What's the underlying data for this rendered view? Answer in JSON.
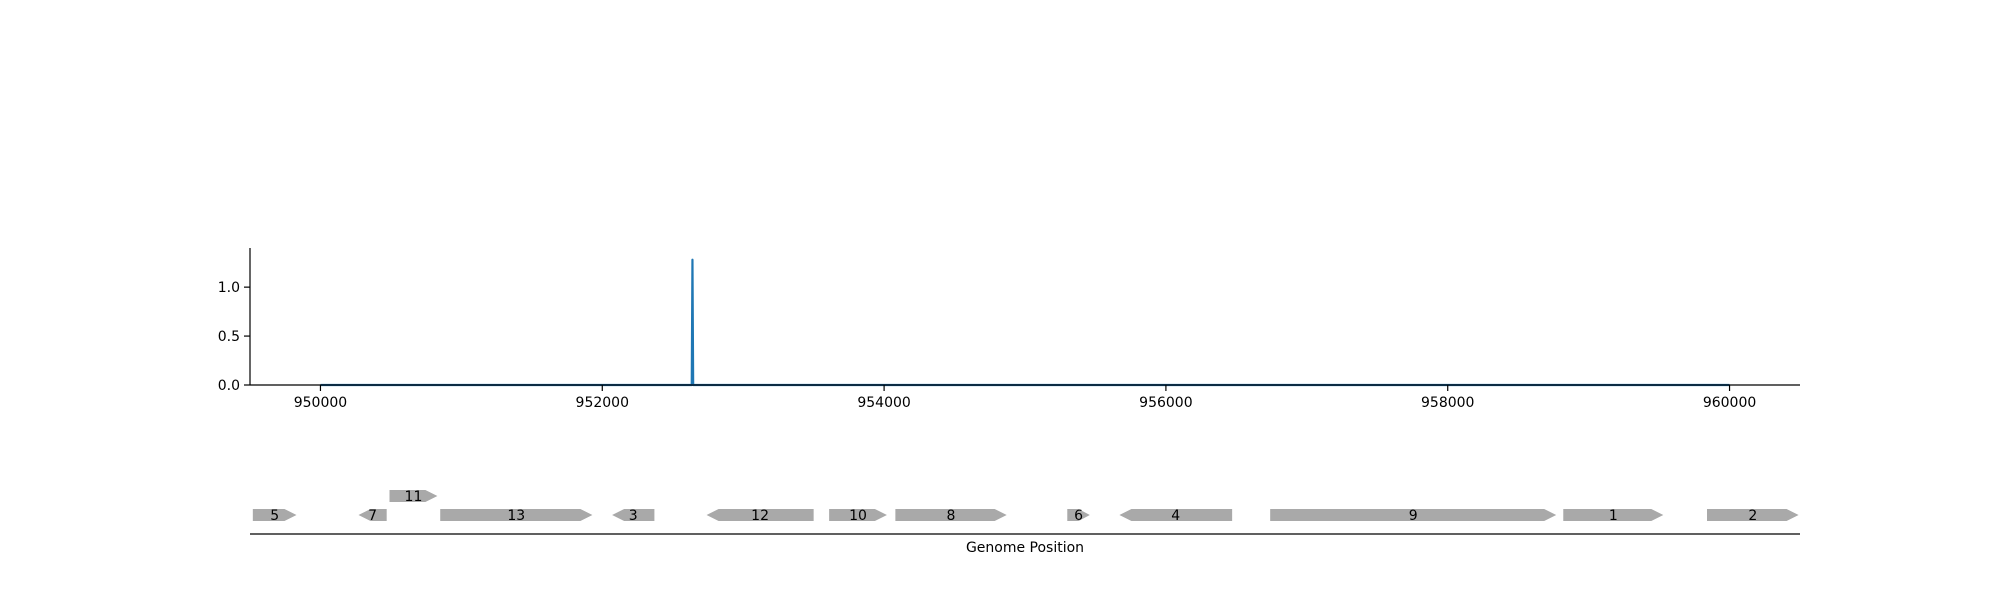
{
  "chart_data": [
    {
      "type": "line",
      "title": "",
      "xlabel": "",
      "ylabel": "",
      "xlim": [
        949500,
        960500
      ],
      "ylim": [
        0,
        1.4
      ],
      "x_ticks": [
        {
          "value": 950000,
          "label": "950000"
        },
        {
          "value": 952000,
          "label": "952000"
        },
        {
          "value": 954000,
          "label": "954000"
        },
        {
          "value": 956000,
          "label": "956000"
        },
        {
          "value": 958000,
          "label": "958000"
        },
        {
          "value": 960000,
          "label": "960000"
        }
      ],
      "y_ticks": [
        {
          "value": 0.0,
          "label": "0.0"
        },
        {
          "value": 0.5,
          "label": "0.5"
        },
        {
          "value": 1.0,
          "label": "1.0"
        }
      ],
      "grid": false,
      "series": [
        {
          "color": "#1f77b4",
          "x": [
            950000,
            952635,
            952640,
            952645,
            960000
          ],
          "y": [
            0,
            0,
            1.28,
            0,
            0
          ]
        }
      ]
    },
    {
      "type": "gene-track",
      "xlabel": "Genome Position",
      "xlim": [
        949500,
        960500
      ],
      "feature_color": "#a9a9a9",
      "features": [
        {
          "label": "5",
          "start": 949520,
          "end": 949830,
          "strand": "+",
          "row": 0
        },
        {
          "label": "7",
          "start": 950270,
          "end": 950470,
          "strand": "-",
          "row": 0
        },
        {
          "label": "11",
          "start": 950490,
          "end": 950830,
          "strand": "+",
          "row": 1
        },
        {
          "label": "13",
          "start": 950850,
          "end": 951930,
          "strand": "+",
          "row": 0
        },
        {
          "label": "3",
          "start": 952070,
          "end": 952370,
          "strand": "-",
          "row": 0
        },
        {
          "label": "12",
          "start": 952740,
          "end": 953500,
          "strand": "-",
          "row": 0
        },
        {
          "label": "10",
          "start": 953610,
          "end": 954020,
          "strand": "+",
          "row": 0
        },
        {
          "label": "8",
          "start": 954080,
          "end": 954870,
          "strand": "+",
          "row": 0
        },
        {
          "label": "6",
          "start": 955300,
          "end": 955460,
          "strand": "+",
          "row": 0
        },
        {
          "label": "4",
          "start": 955670,
          "end": 956470,
          "strand": "-",
          "row": 0
        },
        {
          "label": "9",
          "start": 956740,
          "end": 958770,
          "strand": "+",
          "row": 0
        },
        {
          "label": "1",
          "start": 958820,
          "end": 959530,
          "strand": "+",
          "row": 0
        },
        {
          "label": "2",
          "start": 959840,
          "end": 960490,
          "strand": "+",
          "row": 0
        }
      ]
    }
  ]
}
